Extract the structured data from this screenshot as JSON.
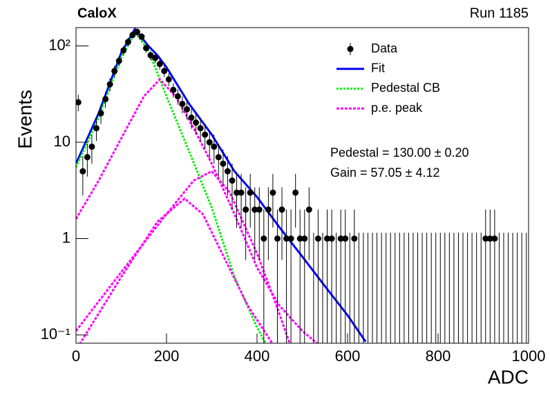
{
  "chart_data": {
    "type": "errorbar",
    "title": "CaloX",
    "subtitle": "Run 1185",
    "xlabel": "ADC",
    "ylabel": "Events",
    "data_name": "Data",
    "data_color": "#000000",
    "x": [
      5,
      15,
      25,
      35,
      45,
      55,
      65,
      75,
      85,
      95,
      105,
      115,
      125,
      135,
      145,
      155,
      165,
      175,
      185,
      195,
      205,
      215,
      225,
      235,
      245,
      255,
      265,
      275,
      285,
      295,
      305,
      315,
      325,
      335,
      345,
      355,
      365,
      375,
      385,
      395,
      405,
      415,
      425,
      435,
      445,
      455,
      465,
      475,
      485,
      495,
      505,
      515,
      525,
      535,
      545,
      555,
      565,
      575,
      585,
      595,
      605,
      615,
      625,
      635,
      645,
      655,
      665,
      675,
      685,
      695,
      705,
      715,
      725,
      735,
      745,
      755,
      765,
      775,
      785,
      795,
      805,
      815,
      825,
      835,
      845,
      855,
      865,
      875,
      885,
      895,
      905,
      915,
      925,
      935,
      945,
      955,
      965,
      975,
      985,
      995
    ],
    "values": [
      26,
      5,
      7,
      9,
      14,
      20,
      28,
      40,
      55,
      70,
      90,
      110,
      130,
      140,
      125,
      95,
      80,
      75,
      65,
      55,
      45,
      35,
      30,
      25,
      22,
      18,
      16,
      14,
      12,
      10,
      9,
      7,
      6,
      5,
      4,
      3,
      3,
      2,
      3,
      2,
      2,
      1,
      2,
      3,
      1,
      2,
      1,
      1,
      3,
      1,
      1,
      2,
      0,
      1,
      0,
      1,
      1,
      0,
      1,
      1,
      0,
      1,
      0,
      0,
      0,
      0,
      0,
      0,
      0,
      0,
      0,
      0,
      0,
      0,
      0,
      0,
      0,
      0,
      0,
      0,
      0,
      0,
      0,
      0,
      0,
      0,
      0,
      0,
      0,
      0,
      1,
      1,
      1,
      0,
      0,
      0,
      0,
      0,
      0,
      0
    ],
    "errors": [
      5.1,
      2.2,
      2.6,
      3,
      3.7,
      4.5,
      5.3,
      6.3,
      7.4,
      8.4,
      9.5,
      10.5,
      11.4,
      11.8,
      11.2,
      9.7,
      8.9,
      8.7,
      8.1,
      7.4,
      6.7,
      5.9,
      5.5,
      5,
      4.7,
      4.2,
      4,
      3.7,
      3.5,
      3.2,
      3,
      2.6,
      2.4,
      2.2,
      2,
      1.7,
      1.7,
      1.4,
      1.7,
      1.4,
      1.4,
      1,
      1.4,
      1.7,
      1,
      1.4,
      1,
      1,
      1.7,
      1,
      1,
      1.4,
      1.15,
      1,
      1.15,
      1,
      1,
      1.15,
      1,
      1,
      1.15,
      1,
      1.15,
      1.15,
      1.15,
      1.15,
      1.15,
      1.15,
      1.15,
      1.15,
      1.15,
      1.15,
      1.15,
      1.15,
      1.15,
      1.15,
      1.15,
      1.15,
      1.15,
      1.15,
      1.15,
      1.15,
      1.15,
      1.15,
      1.15,
      1.15,
      1.15,
      1.15,
      1.15,
      1.15,
      1,
      1,
      1,
      1.15,
      1.15,
      1.15,
      1.15,
      1.15,
      1.15,
      1.15
    ],
    "curves": [
      {
        "name": "Fit",
        "color": "#0000ff",
        "dash": "none",
        "pieces": [
          {
            "x": [
              0,
              50,
              100,
              130,
              160,
              180,
              200,
              250,
              300,
              350,
              400,
              450,
              500,
              550,
              600,
              640
            ],
            "values": [
              6,
              20,
              85,
              150,
              100,
              80,
              60,
              25,
              12,
              5,
              2.7,
              1.3,
              0.65,
              0.32,
              0.16,
              0.085
            ]
          }
        ]
      },
      {
        "name": "Pedestal CB",
        "color": "#00ee00",
        "dash": "3,2",
        "pieces": [
          {
            "x": [
              0,
              50,
              100,
              130,
              160,
              200,
              250,
              300,
              350,
              400,
              420
            ],
            "values": [
              5.5,
              18,
              75,
              140,
              90,
              30,
              8,
              2.1,
              0.4,
              0.12,
              0.08
            ]
          }
        ]
      },
      {
        "name": "p.e. peak",
        "color": "#ff00ff",
        "dash": "4,2",
        "pieces": [
          {
            "x": [
              0,
              50,
              100,
              150,
              185,
              220,
              260,
              300,
              350,
              400,
              450,
              500,
              535
            ],
            "values": [
              1.6,
              4,
              11,
              30,
              45,
              30,
              14,
              6,
              1.8,
              0.5,
              0.2,
              0.11,
              0.08
            ]
          },
          {
            "x": [
              0,
              100,
              200,
              260,
              300,
              340,
              400,
              440,
              473
            ],
            "values": [
              0.11,
              0.45,
              1.8,
              4,
              5,
              3,
              0.7,
              0.22,
              0.08
            ]
          },
          {
            "x": [
              8,
              100,
              180,
              240,
              280,
              330,
              380,
              435
            ],
            "values": [
              0.08,
              0.4,
              1.5,
              2.6,
              1.8,
              0.6,
              0.2,
              0.08
            ]
          }
        ]
      }
    ],
    "annotations": [
      "Pedestal = 130.00 ± 0.20",
      "Gain = 57.05 ± 4.12"
    ],
    "xlim": [
      0,
      1000
    ],
    "ylim": [
      0.082,
      155
    ],
    "xticks": [
      0,
      200,
      400,
      600,
      800,
      1000
    ],
    "yticks": [
      {
        "value": 0.1,
        "label": "10⁻¹"
      },
      1,
      10,
      {
        "value": 100,
        "label": "10²"
      }
    ],
    "log_y": true,
    "legend": "top-right"
  }
}
